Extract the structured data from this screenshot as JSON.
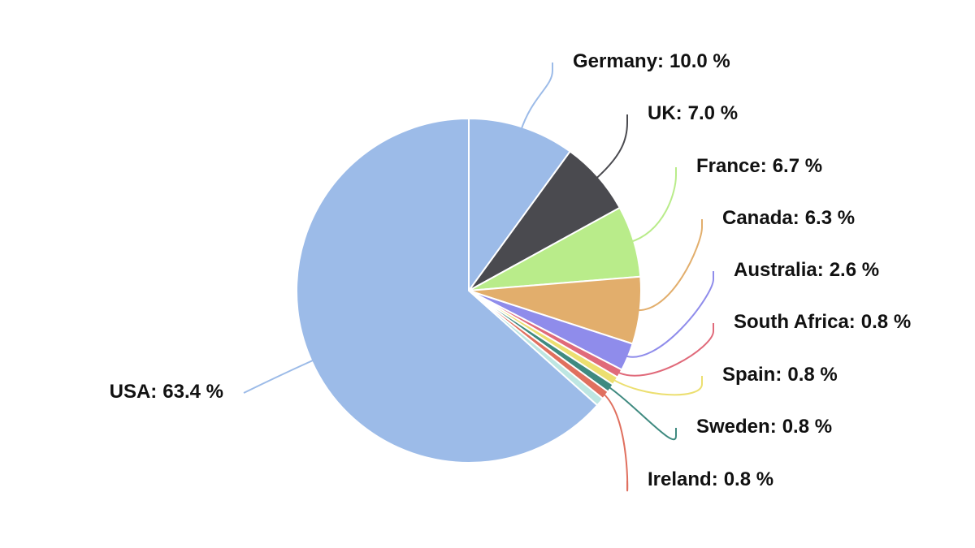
{
  "chart_data": {
    "type": "pie",
    "categories": [
      "Germany:",
      "UK:",
      "France:",
      "Canada:",
      "Australia:",
      "South Africa:",
      "Spain:",
      "Sweden:",
      "Ireland:",
      null,
      "USA:"
    ],
    "values": [
      10.0,
      7.0,
      6.7,
      6.3,
      2.6,
      0.8,
      0.8,
      0.8,
      0.8,
      0.8,
      63.4
    ],
    "value_labels": [
      "10.0 %",
      "7.0 %",
      "6.7 %",
      "6.3 %",
      "2.6 %",
      "0.8 %",
      "0.8 %",
      "0.8 %",
      "0.8 %",
      null,
      "63.4 %"
    ],
    "colors": [
      "#9cbbe8",
      "#4a4a4f",
      "#b9ec8a",
      "#e2ae6c",
      "#8f8ceb",
      "#e06a7a",
      "#ecdf70",
      "#3f8a80",
      "#e0705f",
      "#bde6e2",
      "#9cbbe8"
    ]
  }
}
